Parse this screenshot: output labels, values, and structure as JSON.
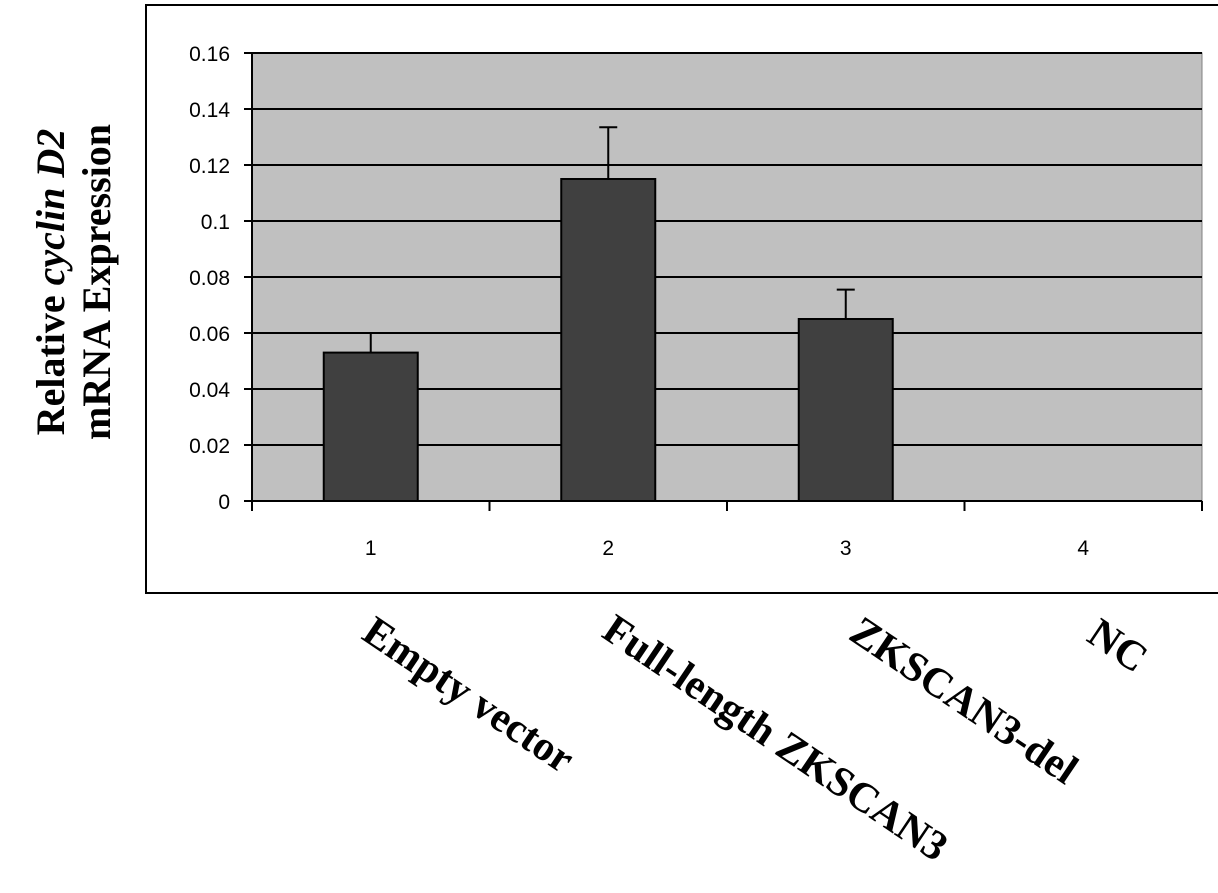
{
  "chart_data": {
    "type": "bar",
    "categories": [
      "1",
      "2",
      "3",
      "4"
    ],
    "category_names": [
      "Empty vector",
      "Full-length ZKSCAN3",
      "ZKSCAN3-del",
      "NC"
    ],
    "values": [
      0.053,
      0.115,
      0.065,
      0
    ],
    "error_bars": [
      0.007,
      0.0185,
      0.0105,
      0
    ],
    "ylabel_lines": [
      "Relative cyclin D2",
      "mRNA Expression"
    ],
    "ylabel": {
      "line1_prefix": "Relative ",
      "line1_italic": "cyclin D2",
      "line2": "mRNA Expression"
    },
    "ylim": [
      0,
      0.16
    ],
    "y_ticks": [
      "0",
      "0.02",
      "0.04",
      "0.06",
      "0.08",
      "0.1",
      "0.12",
      "0.14",
      "0.16"
    ],
    "y_tick_values": [
      0,
      0.02,
      0.04,
      0.06,
      0.08,
      0.1,
      0.12,
      0.14,
      0.16
    ],
    "grid": true,
    "legend": "none",
    "colors": {
      "bar": "#404040",
      "plot_background": "#c0c0c0",
      "gridline": "#000000",
      "frame": "#000000"
    }
  }
}
